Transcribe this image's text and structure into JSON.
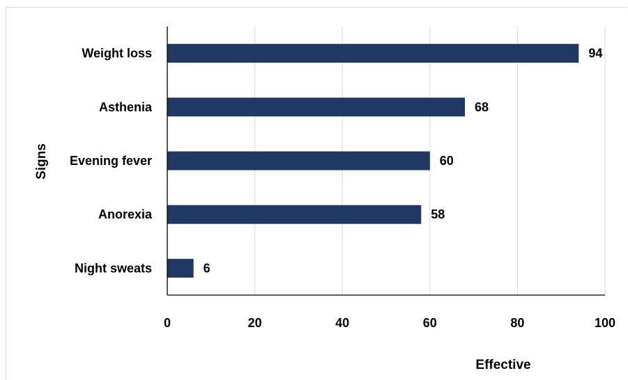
{
  "chart_data": {
    "type": "bar",
    "orientation": "horizontal",
    "categories": [
      "Weight loss",
      "Asthenia",
      "Evening fever",
      "Anorexia",
      "Night sweats"
    ],
    "values": [
      94,
      68,
      60,
      58,
      6
    ],
    "xlabel": "Effective",
    "ylabel": "Signs",
    "xlim": [
      0,
      100
    ],
    "xticks": [
      0,
      20,
      40,
      60,
      80,
      100
    ],
    "grid": "vertical",
    "bar_color": "#1f3864",
    "data_labels": true
  }
}
